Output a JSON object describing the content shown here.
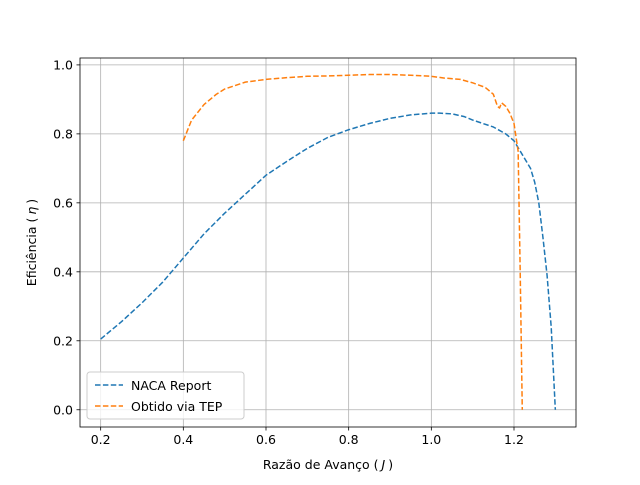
{
  "chart_data": {
    "type": "line",
    "xlabel_main": "Razão de Avanço (",
    "xlabel_symbol": "J",
    "xlabel_close": ")",
    "ylabel_main": "Eficiência (",
    "ylabel_symbol": "η",
    "ylabel_close": ")",
    "xlim": [
      0.15,
      1.35
    ],
    "ylim": [
      -0.05,
      1.02
    ],
    "xticks": [
      0.2,
      0.4,
      0.6,
      0.8,
      1.0,
      1.2
    ],
    "xtick_labels": [
      "0.2",
      "0.4",
      "0.6",
      "0.8",
      "1.0",
      "1.2"
    ],
    "yticks": [
      0.0,
      0.2,
      0.4,
      0.6,
      0.8,
      1.0
    ],
    "ytick_labels": [
      "0.0",
      "0.2",
      "0.4",
      "0.6",
      "0.8",
      "1.0"
    ],
    "grid": true,
    "legend_position": "lower-left",
    "series": [
      {
        "name": "NACA Report",
        "color": "#1f77b4",
        "linestyle": "dashed",
        "x": [
          0.2,
          0.25,
          0.3,
          0.35,
          0.4,
          0.45,
          0.5,
          0.55,
          0.6,
          0.65,
          0.7,
          0.75,
          0.8,
          0.85,
          0.9,
          0.95,
          1.0,
          1.02,
          1.05,
          1.08,
          1.1,
          1.15,
          1.18,
          1.2,
          1.22,
          1.24,
          1.25,
          1.26,
          1.27,
          1.28,
          1.29,
          1.3
        ],
        "y": [
          0.205,
          0.255,
          0.31,
          0.37,
          0.44,
          0.51,
          0.57,
          0.625,
          0.68,
          0.72,
          0.758,
          0.79,
          0.812,
          0.83,
          0.845,
          0.855,
          0.86,
          0.86,
          0.858,
          0.85,
          0.84,
          0.82,
          0.8,
          0.78,
          0.74,
          0.7,
          0.66,
          0.6,
          0.5,
          0.39,
          0.24,
          0.0
        ]
      },
      {
        "name": "Obtido via TEP",
        "color": "#ff7f0e",
        "linestyle": "dashed",
        "x": [
          0.4,
          0.42,
          0.45,
          0.48,
          0.5,
          0.55,
          0.6,
          0.65,
          0.7,
          0.75,
          0.8,
          0.85,
          0.9,
          0.95,
          1.0,
          1.03,
          1.07,
          1.1,
          1.13,
          1.15,
          1.16,
          1.165,
          1.17,
          1.18,
          1.19,
          1.2,
          1.21,
          1.215,
          1.22
        ],
        "y": [
          0.78,
          0.84,
          0.885,
          0.915,
          0.93,
          0.95,
          0.958,
          0.963,
          0.967,
          0.968,
          0.97,
          0.972,
          0.972,
          0.97,
          0.967,
          0.962,
          0.958,
          0.948,
          0.935,
          0.915,
          0.88,
          0.875,
          0.89,
          0.88,
          0.86,
          0.83,
          0.75,
          0.4,
          0.0
        ]
      }
    ]
  }
}
